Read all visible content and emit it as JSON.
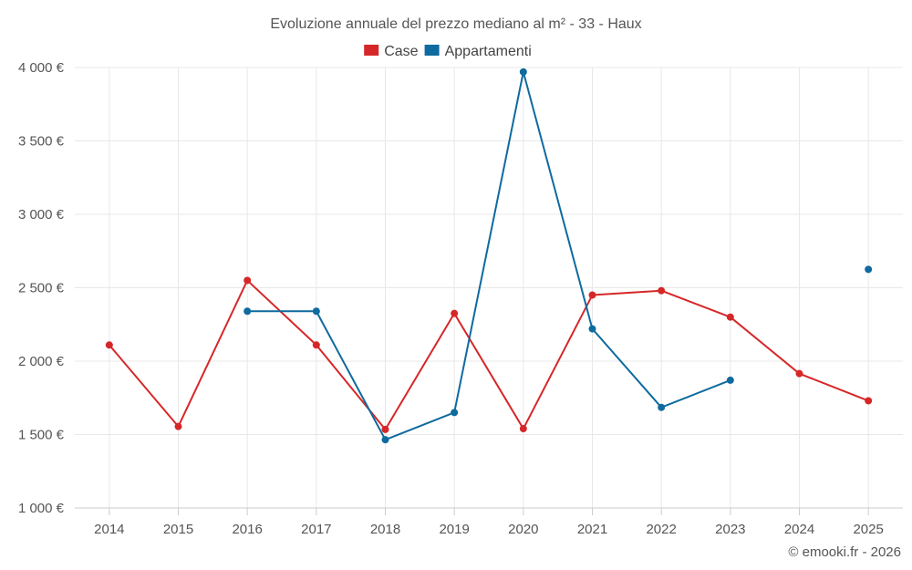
{
  "chart_data": {
    "type": "line",
    "title": "Evoluzione annuale del prezzo mediano al m² - 33 - Haux",
    "categories": [
      "2014",
      "2015",
      "2016",
      "2017",
      "2018",
      "2019",
      "2020",
      "2021",
      "2022",
      "2023",
      "2024",
      "2025"
    ],
    "ylim": [
      1000,
      4000
    ],
    "yticks": [
      1000,
      1500,
      2000,
      2500,
      3000,
      3500,
      4000
    ],
    "ytick_labels": [
      "1 000 €",
      "1 500 €",
      "2 000 €",
      "2 500 €",
      "3 000 €",
      "3 500 €",
      "4 000 €"
    ],
    "xlabel": "",
    "ylabel": "",
    "grid": true,
    "legend_position": "top-center",
    "series": [
      {
        "name": "Case",
        "color": "#d62728",
        "values": [
          2110,
          1555,
          2550,
          2110,
          1535,
          2325,
          1540,
          2450,
          2480,
          2300,
          1915,
          1730
        ]
      },
      {
        "name": "Appartamenti",
        "color": "#0f6a9f",
        "values": [
          null,
          null,
          2340,
          2340,
          1465,
          1650,
          3970,
          2220,
          1685,
          1870,
          null,
          2625
        ]
      }
    ]
  },
  "credit": "© emooki.fr - 2026"
}
